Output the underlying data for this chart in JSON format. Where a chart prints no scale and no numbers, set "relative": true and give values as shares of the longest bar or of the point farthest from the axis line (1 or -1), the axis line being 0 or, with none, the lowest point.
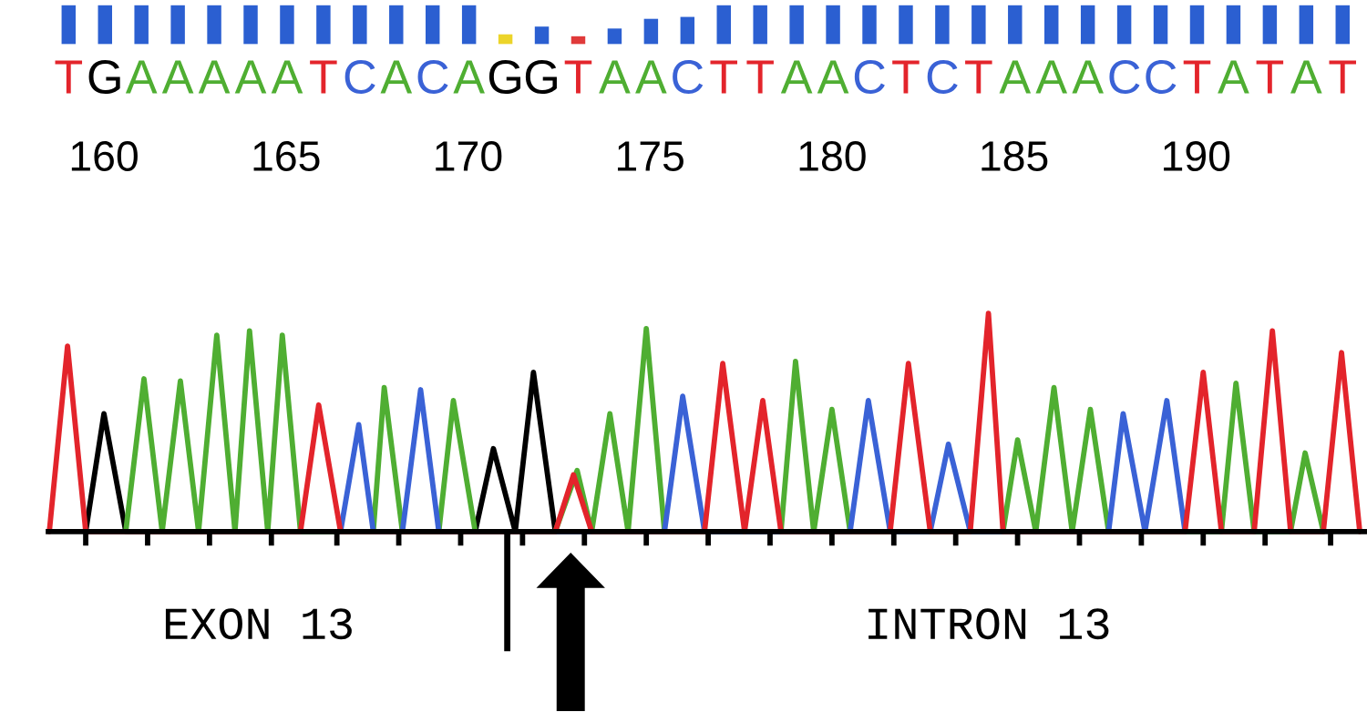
{
  "chart_data": [
    {
      "type": "bar",
      "relative": true,
      "categories": [
        "T",
        "G",
        "A",
        "A",
        "A",
        "A",
        "A",
        "T",
        "C",
        "A",
        "C",
        "A",
        "G",
        "G",
        "T",
        "A",
        "A",
        "C",
        "T",
        "T",
        "A",
        "A",
        "C",
        "T",
        "C",
        "T",
        "A",
        "A",
        "A",
        "C",
        "C",
        "T",
        "A",
        "T",
        "A",
        "T"
      ],
      "values": [
        1,
        1,
        1,
        1,
        1,
        1,
        1,
        1,
        1,
        1,
        1,
        1,
        0.25,
        0.45,
        0.2,
        0.4,
        0.65,
        0.7,
        1,
        1,
        1,
        1,
        1,
        1,
        1,
        1,
        1,
        1,
        1,
        1,
        1,
        1,
        1,
        1,
        1,
        1
      ],
      "colors": [
        "#2b5fd1",
        "#2b5fd1",
        "#2b5fd1",
        "#2b5fd1",
        "#2b5fd1",
        "#2b5fd1",
        "#2b5fd1",
        "#2b5fd1",
        "#2b5fd1",
        "#2b5fd1",
        "#2b5fd1",
        "#2b5fd1",
        "#ecd42a",
        "#2b5fd1",
        "#e03a3a",
        "#2b5fd1",
        "#2b5fd1",
        "#2b5fd1",
        "#2b5fd1",
        "#2b5fd1",
        "#2b5fd1",
        "#2b5fd1",
        "#2b5fd1",
        "#2b5fd1",
        "#2b5fd1",
        "#2b5fd1",
        "#2b5fd1",
        "#2b5fd1",
        "#2b5fd1",
        "#2b5fd1",
        "#2b5fd1",
        "#2b5fd1",
        "#2b5fd1",
        "#2b5fd1",
        "#2b5fd1",
        "#2b5fd1"
      ]
    },
    {
      "type": "line",
      "relative": true,
      "xlim": [
        158.4,
        194.7
      ],
      "xticks": [
        {
          "value": 159.5,
          "label": null
        },
        160,
        {
          "value": 161.2,
          "label": null
        },
        {
          "value": 162.9,
          "label": null
        },
        {
          "value": 164.6,
          "label": null
        },
        165,
        {
          "value": 166.4,
          "label": null
        },
        {
          "value": 168.1,
          "label": null
        },
        {
          "value": 169.8,
          "label": null
        },
        170,
        {
          "value": 171.5,
          "label": null
        },
        {
          "value": 173.2,
          "label": null
        },
        {
          "value": 174.9,
          "label": null
        },
        175,
        {
          "value": 176.6,
          "label": null
        },
        {
          "value": 178.3,
          "label": null
        },
        {
          "value": 180.0,
          "label": null
        },
        180,
        {
          "value": 181.7,
          "label": null
        },
        {
          "value": 183.4,
          "label": null
        },
        185,
        {
          "value": 185.1,
          "label": null
        },
        {
          "value": 186.8,
          "label": null
        },
        {
          "value": 188.5,
          "label": null
        },
        190,
        {
          "value": 190.2,
          "label": null
        },
        {
          "value": 191.9,
          "label": null
        },
        {
          "value": 193.7,
          "label": null
        }
      ],
      "series": [
        {
          "color": "#000000",
          "x": [
            159.5,
            160.0,
            160.6,
            170.2,
            170.7,
            171.3,
            171.8,
            172.4
          ],
          "values": [
            0,
            0.54,
            0,
            0,
            0.38,
            0,
            0.73,
            0
          ]
        },
        {
          "color": "#4fae32",
          "x": [
            160.6,
            161.1,
            161.6,
            162.1,
            162.6,
            163.1,
            163.6,
            164.0,
            164.5,
            164.9,
            165.4,
            167.4,
            167.7,
            168.2,
            169.2,
            169.6,
            170.2,
            172.4,
            173.0,
            173.4,
            173.9,
            174.4,
            174.9,
            175.4,
            178.6,
            179.0,
            179.5,
            180.0,
            180.5,
            184.7,
            185.1,
            185.6,
            186.1,
            186.6,
            187.1,
            187.6,
            190.7,
            191.1,
            191.6,
            192.6,
            193.0,
            193.5
          ],
          "values": [
            0,
            0.7,
            0,
            0.69,
            0,
            0.9,
            0,
            0.92,
            0,
            0.9,
            0,
            0,
            0.66,
            0,
            0,
            0.6,
            0,
            0,
            0.28,
            0,
            0.54,
            0,
            0.93,
            0,
            0,
            0.78,
            0,
            0.56,
            0,
            0,
            0.42,
            0,
            0.66,
            0,
            0.56,
            0,
            0,
            0.68,
            0,
            0,
            0.36,
            0
          ]
        },
        {
          "color": "#3a62d6",
          "x": [
            166.5,
            167.0,
            167.4,
            168.2,
            168.7,
            169.2,
            175.4,
            175.9,
            176.5,
            180.5,
            181.0,
            181.6,
            182.7,
            183.2,
            183.8,
            187.6,
            188.0,
            188.6,
            189.2,
            189.7
          ],
          "values": [
            0,
            0.49,
            0,
            0,
            0.65,
            0,
            0,
            0.62,
            0,
            0,
            0.6,
            0,
            0,
            0.4,
            0,
            0,
            0.54,
            0,
            0.6,
            0
          ]
        },
        {
          "color": "#e3242b",
          "x": [
            158.5,
            159.0,
            159.5,
            165.4,
            165.9,
            166.5,
            172.4,
            172.9,
            173.4,
            176.5,
            177.0,
            177.6,
            178.1,
            178.6,
            181.6,
            182.1,
            182.7,
            183.8,
            184.3,
            184.7,
            189.7,
            190.2,
            190.7,
            191.6,
            192.1,
            192.6,
            193.5,
            194.0,
            194.5
          ],
          "values": [
            0,
            0.85,
            0,
            0,
            0.58,
            0,
            0,
            0.26,
            0,
            0,
            0.77,
            0,
            0.6,
            0,
            0,
            0.77,
            0,
            0,
            1.0,
            0,
            0,
            0.73,
            0,
            0,
            0.92,
            0,
            0,
            0.82,
            0
          ]
        }
      ],
      "annotations": [
        "EXON 13",
        "INTRON 13"
      ]
    }
  ]
}
